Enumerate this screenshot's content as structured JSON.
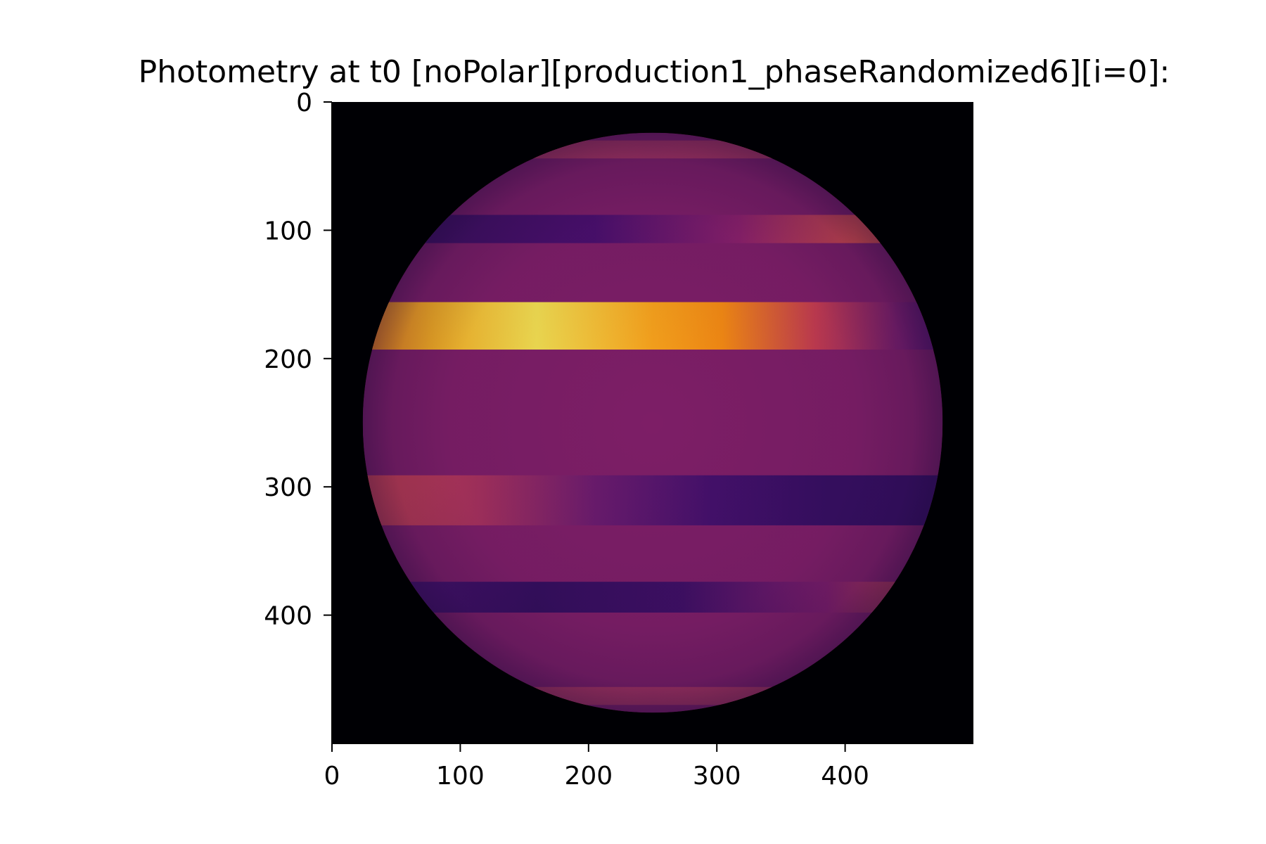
{
  "chart_data": {
    "type": "heatmap",
    "title": "Photometry at t0 [noPolar][production1_phaseRandomized6][i=0]:",
    "xlabel": "",
    "ylabel": "",
    "image_size": [
      500,
      500
    ],
    "xlim": [
      0,
      500
    ],
    "ylim": [
      500,
      0
    ],
    "x_ticks": [
      0,
      100,
      200,
      300,
      400
    ],
    "x_tick_labels": [
      "0",
      "100",
      "200",
      "300",
      "400"
    ],
    "y_ticks": [
      0,
      100,
      200,
      300,
      400
    ],
    "y_tick_labels": [
      "0",
      "100",
      "200",
      "300",
      "400"
    ],
    "colormap": "inferno",
    "background_color": "#000004",
    "disk": {
      "center": [
        250,
        250
      ],
      "radius": 226,
      "base_color": "#7d1e66"
    },
    "bands": [
      {
        "y": [
          30,
          44
        ],
        "stops": [
          [
            0,
            "#b83c5c"
          ],
          [
            0.5,
            "#a63361"
          ],
          [
            1,
            "#b83c5c"
          ]
        ]
      },
      {
        "y": [
          88,
          110
        ],
        "stops": [
          [
            0,
            "#3b0f5c"
          ],
          [
            0.4,
            "#4a0f6c"
          ],
          [
            0.65,
            "#8a2069"
          ],
          [
            0.85,
            "#d44b4b"
          ],
          [
            1,
            "#e05840"
          ]
        ]
      },
      {
        "y": [
          156,
          193
        ],
        "stops": [
          [
            0,
            "#f5831a"
          ],
          [
            0.12,
            "#f9b020"
          ],
          [
            0.3,
            "#f4e050"
          ],
          [
            0.5,
            "#f7a21b"
          ],
          [
            0.62,
            "#f48a12"
          ],
          [
            0.78,
            "#c53c4f"
          ],
          [
            0.92,
            "#7a1e6b"
          ],
          [
            1,
            "#5b1470"
          ]
        ]
      },
      {
        "y": [
          291,
          330
        ],
        "stops": [
          [
            0,
            "#cc4350"
          ],
          [
            0.2,
            "#a6315c"
          ],
          [
            0.4,
            "#6a1b6c"
          ],
          [
            0.6,
            "#44106a"
          ],
          [
            0.8,
            "#360e60"
          ],
          [
            1,
            "#360e60"
          ]
        ]
      },
      {
        "y": [
          374,
          398
        ],
        "stops": [
          [
            0,
            "#4f1270"
          ],
          [
            0.3,
            "#340e5c"
          ],
          [
            0.55,
            "#3e0f63"
          ],
          [
            0.8,
            "#7c1d69"
          ],
          [
            1,
            "#d14a48"
          ]
        ]
      },
      {
        "y": [
          456,
          470
        ],
        "stops": [
          [
            0,
            "#b83c5c"
          ],
          [
            0.5,
            "#a63361"
          ],
          [
            1,
            "#b83c5c"
          ]
        ]
      }
    ]
  }
}
